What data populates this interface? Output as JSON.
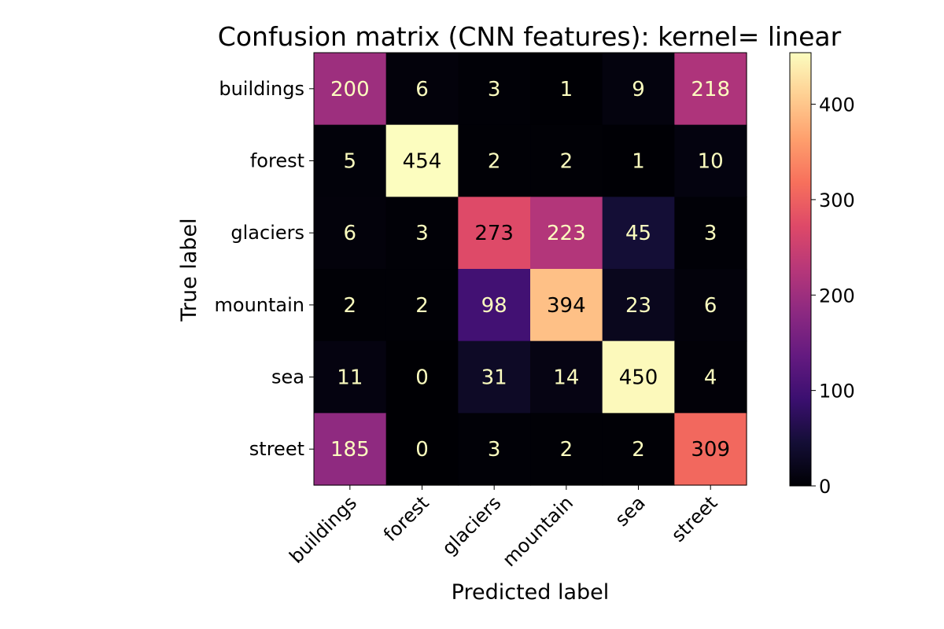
{
  "chart_data": {
    "type": "heatmap",
    "title": "Confusion matrix (CNN features): kernel= linear",
    "xlabel": "Predicted label",
    "ylabel": "True label",
    "x_categories": [
      "buildings",
      "forest",
      "glaciers",
      "mountain",
      "sea",
      "street"
    ],
    "y_categories": [
      "buildings",
      "forest",
      "glaciers",
      "mountain",
      "sea",
      "street"
    ],
    "values": [
      [
        200,
        6,
        3,
        1,
        9,
        218
      ],
      [
        5,
        454,
        2,
        2,
        1,
        10
      ],
      [
        6,
        3,
        273,
        223,
        45,
        3
      ],
      [
        2,
        2,
        98,
        394,
        23,
        6
      ],
      [
        11,
        0,
        31,
        14,
        450,
        4
      ],
      [
        185,
        0,
        3,
        2,
        2,
        309
      ]
    ],
    "colormap": "magma",
    "value_range": [
      0,
      454
    ],
    "colorbar": {
      "ticks": [
        0,
        100,
        200,
        300,
        400
      ],
      "position": "right"
    },
    "text_colors": {
      "light": "#fcfdbf",
      "dark": "#000000"
    },
    "grid": false
  }
}
